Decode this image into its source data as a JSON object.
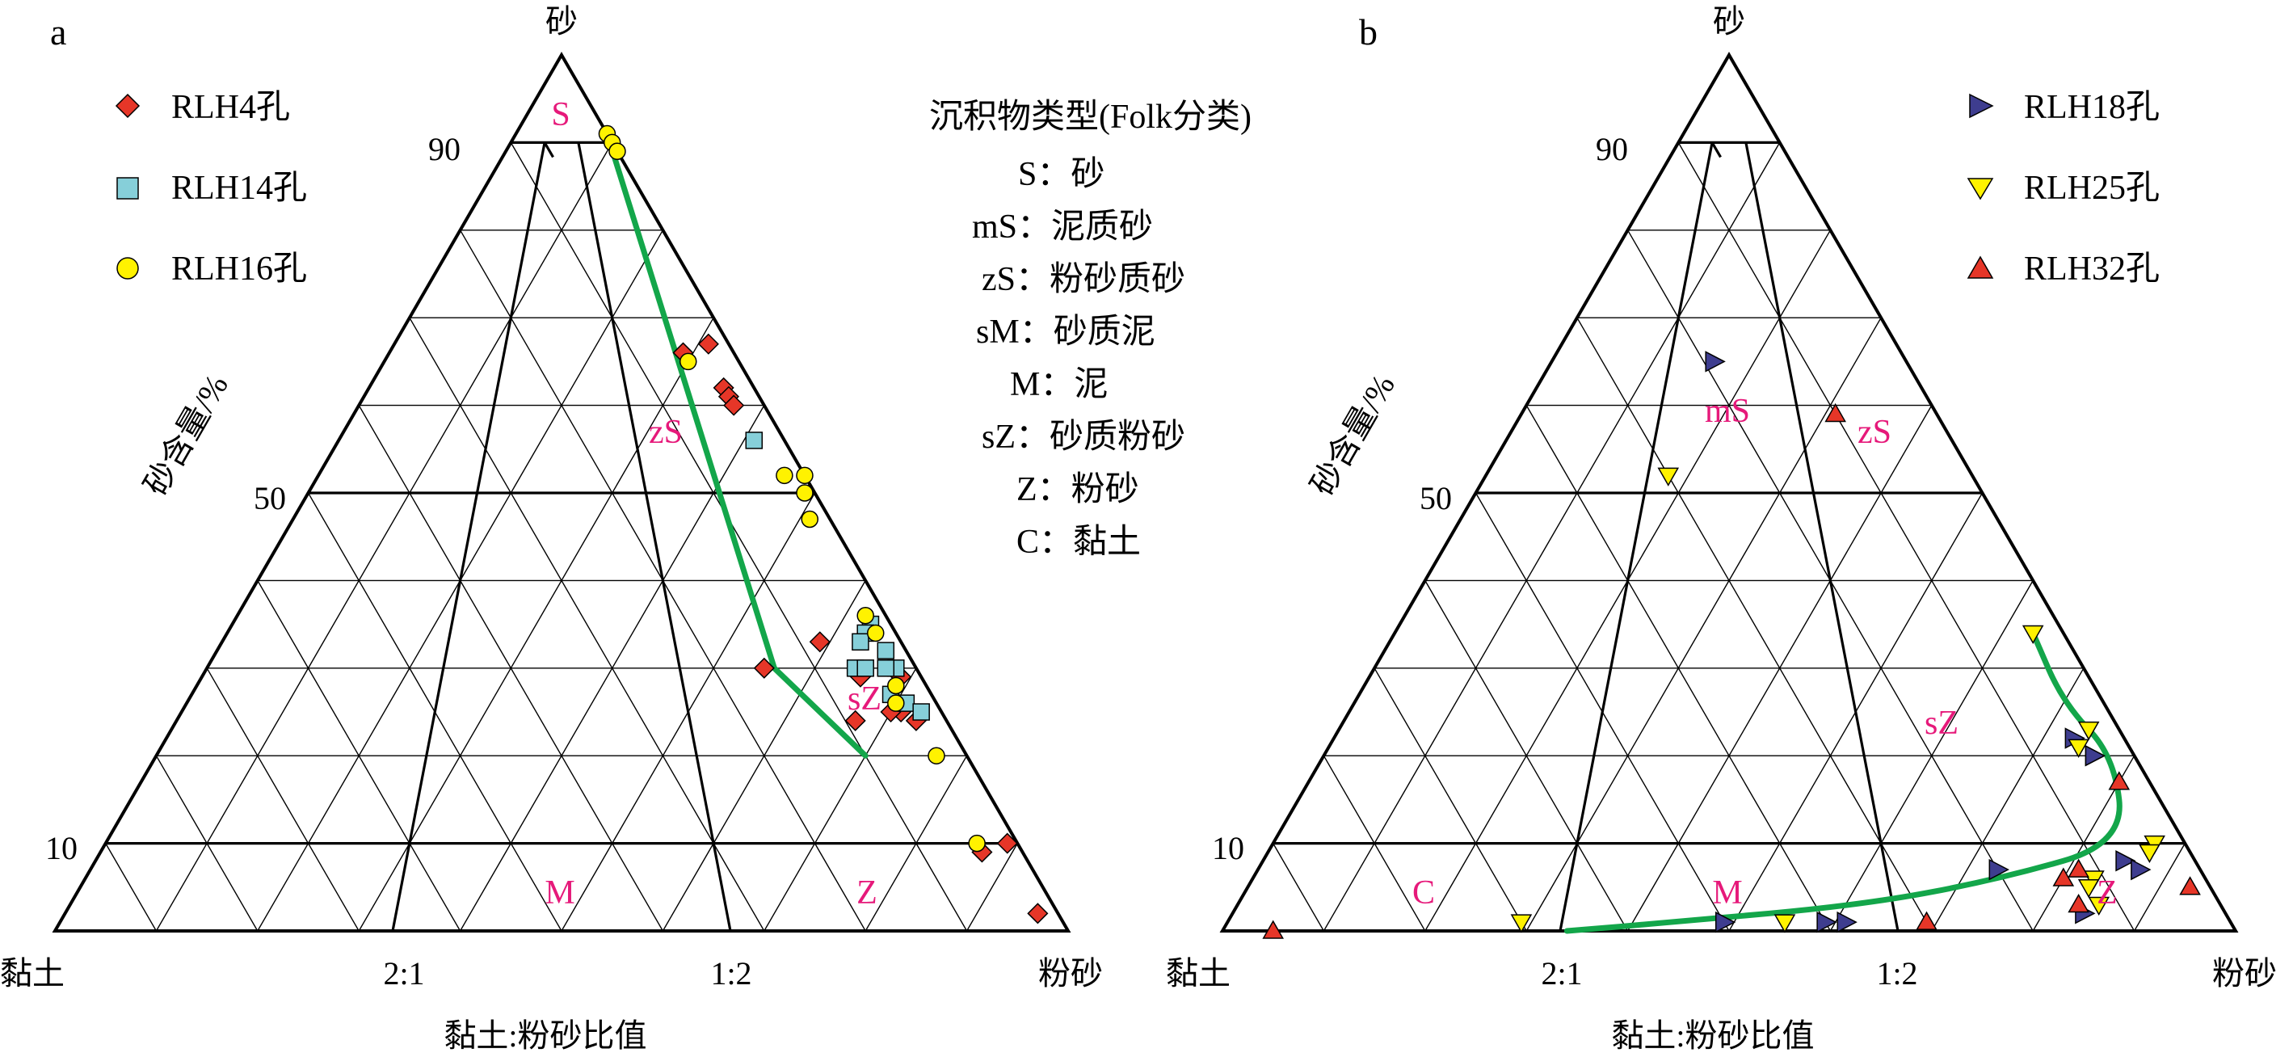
{
  "colors": {
    "RLH4": "#e63628",
    "RLH14": "#86cfd9",
    "RLH16": "#fff200",
    "RLH18": "#3e3d8f",
    "RLH25": "#fff200",
    "RLH32": "#e63628",
    "trend": "#13a64a",
    "zone_label": "#e6197a"
  },
  "classification": {
    "title": "沉积物类型(Folk分类)",
    "items": [
      "S：砂",
      "mS：泥质砂",
      "zS：粉砂质砂",
      "sM：砂质泥",
      "M：泥",
      "sZ：砂质粉砂",
      "Z：粉砂",
      "C：黏土"
    ]
  },
  "chart_data": [
    {
      "type": "scatter",
      "panel": "a",
      "subtype": "ternary",
      "apex_label": "砂",
      "left_label": "黏土",
      "right_label": "粉砂",
      "side_axis_label": "砂含量/%",
      "bottom_axis_label": "黏土:粉砂比值",
      "sand_ticks": [
        "90",
        "50",
        "10"
      ],
      "ratio_ticks": [
        "2:1",
        "1:2"
      ],
      "zone_labels": [
        "S",
        "zS",
        "sZ",
        "M",
        "Z"
      ],
      "legend": [
        "RLH4孔",
        "RLH14孔",
        "RLH16孔"
      ],
      "series": [
        {
          "name": "RLH4孔",
          "marker": "diamond",
          "points": [
            [
              2,
              67
            ],
            [
              5,
              66
            ],
            [
              3,
              62
            ],
            [
              3,
              61
            ],
            [
              3,
              60
            ],
            [
              8,
              33
            ],
            [
              15,
              30
            ],
            [
              2,
              29
            ],
            [
              6,
              29
            ],
            [
              4,
              25
            ],
            [
              9,
              24
            ],
            [
              5,
              25
            ],
            [
              3,
              24
            ],
            [
              1,
              10
            ],
            [
              4,
              9
            ],
            [
              2,
              2
            ]
          ]
        },
        {
          "name": "RLH14孔",
          "marker": "square",
          "points": [
            [
              3,
              56
            ],
            [
              2,
              35
            ],
            [
              3,
              34
            ],
            [
              4,
              33
            ],
            [
              2,
              32
            ],
            [
              6,
              30
            ],
            [
              2,
              30
            ],
            [
              3,
              30
            ],
            [
              5,
              30
            ],
            [
              4,
              27
            ],
            [
              3,
              26
            ],
            [
              2,
              25
            ]
          ]
        },
        {
          "name": "RLH16孔",
          "marker": "circle",
          "points": [
            [
              0,
              91
            ],
            [
              0,
              90
            ],
            [
              0,
              89
            ],
            [
              5,
              65
            ],
            [
              2,
              52
            ],
            [
              0,
              52
            ],
            [
              1,
              50
            ],
            [
              2,
              47
            ],
            [
              2,
              36
            ],
            [
              2,
              34
            ],
            [
              3,
              28
            ],
            [
              4,
              26
            ],
            [
              3,
              20
            ],
            [
              4,
              10
            ]
          ]
        }
      ],
      "trend_line": [
        [
          0,
          91
        ],
        [
          14,
          30
        ],
        [
          10,
          20
        ]
      ]
    },
    {
      "type": "scatter",
      "panel": "b",
      "subtype": "ternary",
      "apex_label": "砂",
      "left_label": "黏土",
      "right_label": "粉砂",
      "side_axis_label": "砂含量/%",
      "bottom_axis_label": "黏土:粉砂比值",
      "sand_ticks": [
        "90",
        "50",
        "10"
      ],
      "ratio_ticks": [
        "2:1",
        "1:2"
      ],
      "zone_labels": [
        "mS",
        "zS",
        "sZ",
        "C",
        "M",
        "Z"
      ],
      "legend": [
        "RLH18孔",
        "RLH25孔",
        "RLH32孔"
      ],
      "series": [
        {
          "name": "RLH18孔",
          "marker": "triangle-right",
          "points": [
            [
              19,
              65
            ],
            [
              5,
              22
            ],
            [
              4,
              20
            ],
            [
              4,
              20
            ],
            [
              20,
              7
            ],
            [
              7,
              8
            ],
            [
              6,
              7
            ],
            [
              14,
              2
            ],
            [
              50,
              1
            ],
            [
              38,
              1
            ],
            [
              40,
              1
            ]
          ]
        },
        {
          "name": "RLH25孔",
          "marker": "triangle-down",
          "points": [
            [
              30,
              52
            ],
            [
              3,
              34
            ],
            [
              3,
              23
            ],
            [
              5,
              21
            ],
            [
              3,
              10
            ],
            [
              4,
              9
            ],
            [
              70,
              1
            ],
            [
              44,
              1
            ],
            [
              11,
              6
            ],
            [
              12,
              5
            ],
            [
              12,
              3
            ]
          ]
        },
        {
          "name": "RLH32孔",
          "marker": "triangle-up",
          "points": [
            [
              10,
              59
            ],
            [
              3,
              17
            ],
            [
              2,
              5
            ],
            [
              12,
              7
            ],
            [
              14,
              6
            ],
            [
              14,
              3
            ],
            [
              30,
              1
            ],
            [
              95,
              0
            ]
          ]
        }
      ],
      "trend_line": [
        [
          3,
          34
        ],
        [
          4,
          26
        ],
        [
          2,
          20
        ],
        [
          6,
          10
        ],
        [
          20,
          6
        ],
        [
          35,
          3
        ],
        [
          55,
          1
        ],
        [
          66,
          0
        ]
      ]
    }
  ]
}
